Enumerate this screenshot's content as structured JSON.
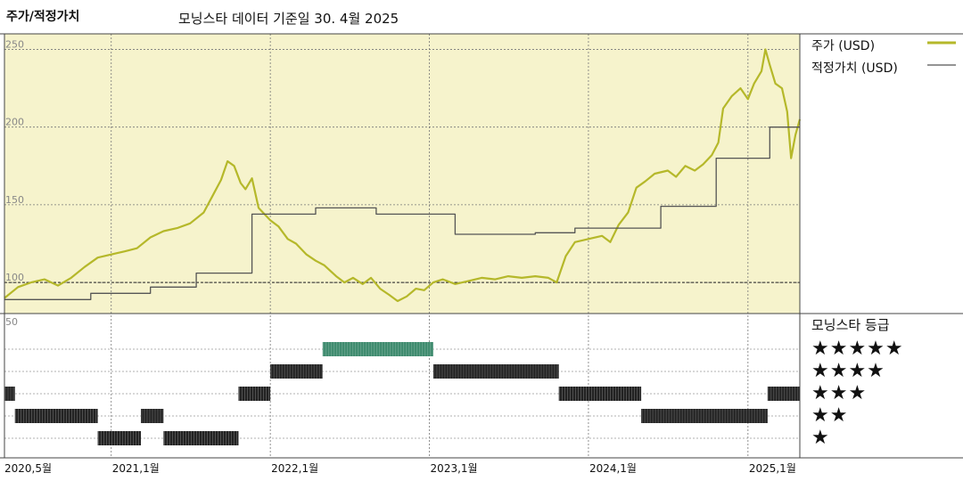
{
  "header": {
    "title": "주가/적정가치",
    "subtitle": "모닝스타 데이터 기준일 30. 4월 2025"
  },
  "legend": [
    {
      "label": "주가 (USD)",
      "color": "#b5b82a"
    },
    {
      "label": "적정가치 (USD)",
      "color": "#555555"
    }
  ],
  "rating_panel": {
    "title": "모닝스타 등급",
    "levels": [
      "★★★★★",
      "★★★★",
      "★★★",
      "★★",
      "★"
    ]
  },
  "chart_data": {
    "type": "line",
    "x_range": [
      "2020-05-01",
      "2025-04-30"
    ],
    "x_ticks": [
      {
        "date": "2020-05-01",
        "label": "2020,5월"
      },
      {
        "date": "2021-01-01",
        "label": "2021,1월"
      },
      {
        "date": "2022-01-01",
        "label": "2022,1월"
      },
      {
        "date": "2023-01-01",
        "label": "2023,1월"
      },
      {
        "date": "2024-01-01",
        "label": "2024,1월"
      },
      {
        "date": "2025-01-01",
        "label": "2025,1월"
      }
    ],
    "y_ticks": [
      100,
      150,
      200,
      250
    ],
    "ylim": [
      80,
      260
    ],
    "reference_line": 100,
    "rating_axis_label": "50",
    "panel_color": "#f6f3cc",
    "series": [
      {
        "name": "주가 (USD)",
        "color": "#b5b82a",
        "points": [
          [
            "2020-05-01",
            90
          ],
          [
            "2020-06-01",
            97
          ],
          [
            "2020-07-01",
            100
          ],
          [
            "2020-08-01",
            102
          ],
          [
            "2020-09-01",
            98
          ],
          [
            "2020-10-01",
            103
          ],
          [
            "2020-11-01",
            110
          ],
          [
            "2020-12-01",
            116
          ],
          [
            "2021-01-01",
            118
          ],
          [
            "2021-02-01",
            120
          ],
          [
            "2021-03-01",
            122
          ],
          [
            "2021-04-01",
            129
          ],
          [
            "2021-05-01",
            133
          ],
          [
            "2021-06-01",
            135
          ],
          [
            "2021-07-01",
            138
          ],
          [
            "2021-08-01",
            145
          ],
          [
            "2021-08-20",
            155
          ],
          [
            "2021-09-10",
            166
          ],
          [
            "2021-09-25",
            178
          ],
          [
            "2021-10-10",
            175
          ],
          [
            "2021-10-25",
            164
          ],
          [
            "2021-11-05",
            160
          ],
          [
            "2021-11-20",
            167
          ],
          [
            "2021-12-05",
            148
          ],
          [
            "2022-01-01",
            140
          ],
          [
            "2022-01-20",
            136
          ],
          [
            "2022-02-10",
            128
          ],
          [
            "2022-03-01",
            125
          ],
          [
            "2022-03-25",
            118
          ],
          [
            "2022-04-15",
            114
          ],
          [
            "2022-05-05",
            111
          ],
          [
            "2022-06-01",
            104
          ],
          [
            "2022-06-20",
            100
          ],
          [
            "2022-07-10",
            103
          ],
          [
            "2022-08-01",
            99
          ],
          [
            "2022-08-20",
            103
          ],
          [
            "2022-09-10",
            96
          ],
          [
            "2022-10-01",
            92
          ],
          [
            "2022-10-20",
            88
          ],
          [
            "2022-11-10",
            91
          ],
          [
            "2022-12-01",
            96
          ],
          [
            "2022-12-20",
            95
          ],
          [
            "2023-01-10",
            100
          ],
          [
            "2023-02-01",
            102
          ],
          [
            "2023-03-01",
            99
          ],
          [
            "2023-04-01",
            101
          ],
          [
            "2023-05-01",
            103
          ],
          [
            "2023-06-01",
            102
          ],
          [
            "2023-07-01",
            104
          ],
          [
            "2023-08-01",
            103
          ],
          [
            "2023-09-01",
            104
          ],
          [
            "2023-10-01",
            103
          ],
          [
            "2023-10-20",
            100
          ],
          [
            "2023-11-10",
            117
          ],
          [
            "2023-12-01",
            126
          ],
          [
            "2024-01-01",
            128
          ],
          [
            "2024-02-01",
            130
          ],
          [
            "2024-02-20",
            126
          ],
          [
            "2024-03-10",
            137
          ],
          [
            "2024-04-01",
            145
          ],
          [
            "2024-04-20",
            161
          ],
          [
            "2024-05-10",
            165
          ],
          [
            "2024-06-01",
            170
          ],
          [
            "2024-07-01",
            172
          ],
          [
            "2024-07-20",
            168
          ],
          [
            "2024-08-10",
            175
          ],
          [
            "2024-09-01",
            172
          ],
          [
            "2024-09-20",
            176
          ],
          [
            "2024-10-10",
            182
          ],
          [
            "2024-10-25",
            190
          ],
          [
            "2024-11-05",
            212
          ],
          [
            "2024-11-25",
            220
          ],
          [
            "2024-12-15",
            225
          ],
          [
            "2025-01-01",
            218
          ],
          [
            "2025-01-15",
            228
          ],
          [
            "2025-02-01",
            236
          ],
          [
            "2025-02-10",
            250
          ],
          [
            "2025-02-20",
            240
          ],
          [
            "2025-03-05",
            228
          ],
          [
            "2025-03-20",
            225
          ],
          [
            "2025-04-01",
            210
          ],
          [
            "2025-04-10",
            180
          ],
          [
            "2025-04-20",
            195
          ],
          [
            "2025-04-30",
            205
          ]
        ]
      },
      {
        "name": "적정가치 (USD)",
        "color": "#555555",
        "points": [
          [
            "2020-05-01",
            89
          ],
          [
            "2020-11-15",
            89
          ],
          [
            "2020-11-15",
            93
          ],
          [
            "2021-04-01",
            93
          ],
          [
            "2021-04-01",
            97
          ],
          [
            "2021-07-15",
            97
          ],
          [
            "2021-07-15",
            106
          ],
          [
            "2021-11-20",
            106
          ],
          [
            "2021-11-20",
            144
          ],
          [
            "2022-04-15",
            144
          ],
          [
            "2022-04-15",
            148
          ],
          [
            "2022-09-01",
            148
          ],
          [
            "2022-09-01",
            144
          ],
          [
            "2023-03-01",
            144
          ],
          [
            "2023-03-01",
            131
          ],
          [
            "2023-09-01",
            131
          ],
          [
            "2023-09-01",
            132
          ],
          [
            "2023-12-01",
            132
          ],
          [
            "2023-12-01",
            135
          ],
          [
            "2024-06-15",
            135
          ],
          [
            "2024-06-15",
            149
          ],
          [
            "2024-10-20",
            149
          ],
          [
            "2024-10-20",
            180
          ],
          [
            "2025-02-20",
            180
          ],
          [
            "2025-02-20",
            200
          ],
          [
            "2025-04-30",
            200
          ]
        ]
      }
    ],
    "rating_periods": [
      {
        "from": "2020-05-01",
        "to": "2020-05-25",
        "stars": 3
      },
      {
        "from": "2020-05-25",
        "to": "2020-12-01",
        "stars": 2
      },
      {
        "from": "2020-12-01",
        "to": "2021-03-10",
        "stars": 1
      },
      {
        "from": "2021-03-10",
        "to": "2021-05-01",
        "stars": 2
      },
      {
        "from": "2021-05-01",
        "to": "2021-10-20",
        "stars": 1
      },
      {
        "from": "2021-10-20",
        "to": "2022-01-01",
        "stars": 3
      },
      {
        "from": "2022-01-01",
        "to": "2022-05-01",
        "stars": 4
      },
      {
        "from": "2022-05-01",
        "to": "2023-01-10",
        "stars": 5
      },
      {
        "from": "2023-01-10",
        "to": "2023-10-25",
        "stars": 4
      },
      {
        "from": "2023-10-25",
        "to": "2024-05-01",
        "stars": 3
      },
      {
        "from": "2024-05-01",
        "to": "2025-02-15",
        "stars": 2
      },
      {
        "from": "2025-02-15",
        "to": "2025-04-30",
        "stars": 3
      }
    ]
  }
}
